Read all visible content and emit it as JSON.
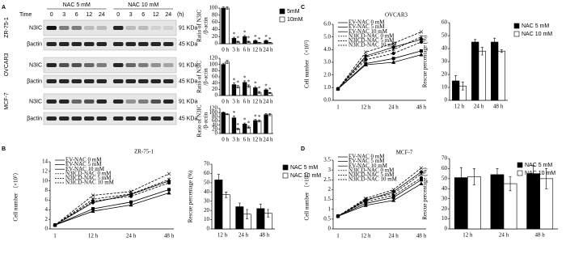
{
  "panel_labels": [
    "A",
    "B",
    "C",
    "D"
  ],
  "blot": {
    "time_label": "Time",
    "unit": "(h)",
    "conditions": [
      "NAC 5 mM",
      "NAC 10 mM"
    ],
    "times": [
      "0",
      "3",
      "6",
      "12",
      "24"
    ],
    "rows": [
      {
        "cell_line": "ZR-75-1",
        "bands": [
          {
            "name": "N3IC",
            "size": "91 KDa"
          },
          {
            "name": "βactin",
            "size": "45 KDa"
          }
        ]
      },
      {
        "cell_line": "OVCAR3",
        "bands": [
          {
            "name": "N3IC",
            "size": "91 KDa"
          },
          {
            "name": "βactin",
            "size": "45 KDa"
          }
        ]
      },
      {
        "cell_line": "MCF-7",
        "bands": [
          {
            "name": "N3IC",
            "size": "91 KDa"
          },
          {
            "name": "βactin",
            "size": "45 KDa"
          }
        ]
      }
    ]
  },
  "chart_data": [
    {
      "type": "bar",
      "y_label": [
        "Ratio of N3IC",
        "/β-actin"
      ],
      "categories": [
        "0 h",
        "3 h",
        "6 h",
        "12 h",
        "24 h"
      ],
      "ylim": [
        0,
        100
      ],
      "yticks": [
        0,
        20,
        40,
        60,
        80,
        100
      ],
      "legend": "right",
      "series": [
        {
          "name": "5mM",
          "color": "#000000",
          "values": [
            100,
            15,
            20,
            8,
            8
          ],
          "errors": [
            3,
            3,
            3,
            2,
            2
          ],
          "significance": [
            null,
            "*",
            "*",
            "*",
            "*"
          ]
        },
        {
          "name": "10mM",
          "color": "#ffffff",
          "values": [
            100,
            5,
            5,
            3,
            3
          ],
          "errors": [
            3,
            2,
            2,
            1,
            1
          ],
          "significance": [
            null,
            "*",
            "*",
            "*",
            "*"
          ]
        }
      ]
    },
    {
      "type": "bar",
      "y_label": [
        "Ratio of N3IC",
        "/β-actin"
      ],
      "categories": [
        "0 h",
        "3 h",
        "6 h",
        "12 h",
        "24 h"
      ],
      "ylim": [
        0,
        120
      ],
      "yticks": [
        0,
        20,
        40,
        60,
        80,
        100,
        120
      ],
      "series": [
        {
          "color": "#000000",
          "values": [
            100,
            35,
            42,
            25,
            18
          ],
          "errors": [
            4,
            5,
            5,
            4,
            3
          ],
          "significance": [
            null,
            "*",
            "*",
            "*",
            "*"
          ]
        },
        {
          "color": "#ffffff",
          "values": [
            108,
            28,
            30,
            10,
            8
          ],
          "errors": [
            5,
            4,
            4,
            3,
            2
          ],
          "significance": [
            null,
            "*",
            "*",
            "*",
            "*"
          ]
        }
      ]
    },
    {
      "type": "bar",
      "y_label": [
        "Ratio of N3IC",
        "/β-actin"
      ],
      "categories": [
        "0 h",
        "3 h",
        "6 h",
        "12 h",
        "24 h"
      ],
      "ylim": [
        0,
        120
      ],
      "yticks": [
        0,
        20,
        40,
        60,
        80,
        100,
        120
      ],
      "series": [
        {
          "color": "#000000",
          "values": [
            100,
            75,
            45,
            62,
            90
          ],
          "errors": [
            3,
            8,
            5,
            5,
            5
          ],
          "significance": [
            null,
            "*",
            "*",
            "*",
            null
          ]
        },
        {
          "color": "#ffffff",
          "values": [
            92,
            22,
            30,
            60,
            90
          ],
          "errors": [
            3,
            4,
            5,
            5,
            5
          ],
          "significance": [
            null,
            "*",
            "*",
            "*",
            null
          ]
        }
      ]
    },
    {
      "type": "line",
      "title": "ZR-75-1",
      "y_label": "Cell number （×10⁵）",
      "categories": [
        "1",
        "12 h",
        "24 h",
        "48 h"
      ],
      "ylim": [
        0,
        14
      ],
      "yticks": [
        0,
        2,
        4,
        6,
        8,
        10,
        12,
        14
      ],
      "legend": "upper left",
      "series": [
        {
          "name": "EV-NAC 0 mM",
          "color": "#000000",
          "dashed": false,
          "marker": "diamond",
          "values": [
            0.8,
            5.5,
            7.2,
            10.0
          ]
        },
        {
          "name": "EV-NAC 5 mM",
          "color": "#000000",
          "dashed": false,
          "marker": "square",
          "values": [
            0.8,
            4.2,
            5.6,
            8.2
          ]
        },
        {
          "name": "EV-NAC 10 mM",
          "color": "#000000",
          "dashed": false,
          "marker": "triangle",
          "values": [
            0.8,
            3.7,
            5.0,
            7.5
          ]
        },
        {
          "name": "N3ICD-NAC 0 mM",
          "color": "#000000",
          "dashed": true,
          "marker": "x",
          "values": [
            0.8,
            7.0,
            7.8,
            11.5
          ]
        },
        {
          "name": "N3ICD-NAC 5 mM",
          "color": "#000000",
          "dashed": true,
          "marker": "star",
          "values": [
            0.8,
            6.2,
            7.3,
            10.3
          ]
        },
        {
          "name": "N3ICD-NAC 10 mM",
          "color": "#000000",
          "dashed": true,
          "marker": "circle",
          "values": [
            0.8,
            5.8,
            6.8,
            9.6
          ]
        }
      ]
    },
    {
      "type": "bar",
      "y_label": "Rescue  percentage (%)",
      "categories": [
        "12 h",
        "24 h",
        "48 h"
      ],
      "ylim": [
        0,
        70
      ],
      "yticks": [
        0,
        10,
        20,
        30,
        40,
        50,
        60,
        70
      ],
      "legend": "right",
      "series": [
        {
          "name": "NAC 5 mM",
          "color": "#000000",
          "values": [
            53,
            24,
            22
          ],
          "errors": [
            6,
            4,
            5
          ]
        },
        {
          "name": "NAC 10 mM",
          "color": "#ffffff",
          "values": [
            37,
            16,
            17
          ],
          "errors": [
            3,
            5,
            4
          ]
        }
      ]
    },
    {
      "type": "line",
      "title": "OVCAR3",
      "y_label": "Cell number （×10⁵）",
      "categories": [
        "1",
        "12 h",
        "24 h",
        "48 h"
      ],
      "ylim": [
        0,
        6
      ],
      "yticks": [
        {
          "value": 0,
          "label": "0.0"
        },
        {
          "value": 1,
          "label": "1.0"
        },
        {
          "value": 2,
          "label": "2.0"
        },
        {
          "value": 3,
          "label": "3.0"
        },
        {
          "value": 4,
          "label": "4.0"
        },
        {
          "value": 5,
          "label": "5.0"
        },
        {
          "value": 6,
          "label": "6.0"
        }
      ],
      "legend": "upper left",
      "series": [
        {
          "name": "EV-NAC 0 mM",
          "color": "#000000",
          "dashed": false,
          "marker": "diamond",
          "values": [
            0.9,
            3.5,
            4.2,
            4.8
          ]
        },
        {
          "name": "EV-NAC 5 mM",
          "color": "#000000",
          "dashed": false,
          "marker": "square",
          "values": [
            0.9,
            2.9,
            3.3,
            3.9
          ]
        },
        {
          "name": "EV-NAC 10 mM",
          "color": "#000000",
          "dashed": false,
          "marker": "triangle",
          "values": [
            0.9,
            2.8,
            3.0,
            3.6
          ]
        },
        {
          "name": "N3ICD-NAC 0 mM",
          "color": "#000000",
          "dashed": true,
          "marker": "x",
          "values": [
            0.9,
            3.8,
            4.5,
            5.4
          ]
        },
        {
          "name": "N3ICD-NAC 5 mM",
          "color": "#000000",
          "dashed": true,
          "marker": "star",
          "values": [
            0.9,
            3.4,
            4.0,
            5.0
          ]
        },
        {
          "name": "N3ICD-NAC 10 mM",
          "color": "#000000",
          "dashed": true,
          "marker": "circle",
          "values": [
            0.9,
            3.2,
            3.7,
            4.6
          ]
        }
      ]
    },
    {
      "type": "bar",
      "y_label": "Rescue  percentage (%)",
      "categories": [
        "12 h",
        "24 h",
        "48 h"
      ],
      "ylim": [
        0,
        60
      ],
      "yticks": [
        0,
        10,
        20,
        30,
        40,
        50,
        60
      ],
      "legend": "right",
      "series": [
        {
          "name": "NAC 5 mM",
          "color": "#000000",
          "values": [
            15,
            45,
            45
          ],
          "errors": [
            4,
            2,
            3
          ]
        },
        {
          "name": "NAC 10 mM",
          "color": "#ffffff",
          "values": [
            11,
            38,
            38
          ],
          "errors": [
            3,
            3,
            1
          ]
        }
      ]
    },
    {
      "type": "line",
      "title": "MCF-7",
      "y_label": "Cell number （×10⁵）",
      "categories": [
        "1",
        "12 h",
        "24 h",
        "48 h"
      ],
      "ylim": [
        0,
        3.5
      ],
      "yticks": [
        0,
        0.5,
        1,
        1.5,
        2,
        2.5,
        3,
        3.5
      ],
      "legend": "upper left",
      "series": [
        {
          "name": "EV-NAC 0 mM",
          "color": "#000000",
          "dashed": false,
          "marker": "diamond",
          "values": [
            0.65,
            1.45,
            1.9,
            2.9
          ]
        },
        {
          "name": "EV-NAC 5 mM",
          "color": "#000000",
          "dashed": false,
          "marker": "square",
          "values": [
            0.65,
            1.3,
            1.6,
            2.5
          ]
        },
        {
          "name": "EV-NAC 10 mM",
          "color": "#000000",
          "dashed": false,
          "marker": "triangle",
          "values": [
            0.65,
            1.2,
            1.45,
            2.3
          ]
        },
        {
          "name": "N3ICD-NAC 0 mM",
          "color": "#000000",
          "dashed": true,
          "marker": "x",
          "values": [
            0.65,
            1.55,
            2.0,
            3.1
          ]
        },
        {
          "name": "N3ICD-NAC 5 mM",
          "color": "#000000",
          "dashed": true,
          "marker": "star",
          "values": [
            0.65,
            1.5,
            1.8,
            2.8
          ]
        },
        {
          "name": "N3ICD-NAC 10 mM",
          "color": "#000000",
          "dashed": true,
          "marker": "circle",
          "values": [
            0.65,
            1.4,
            1.7,
            2.6
          ]
        }
      ]
    },
    {
      "type": "bar",
      "y_label": "Rescue  percentage (%)",
      "categories": [
        "12 h",
        "24 h",
        "48 h"
      ],
      "ylim": [
        0,
        70
      ],
      "yticks": [
        0,
        10,
        20,
        30,
        40,
        50,
        60,
        70
      ],
      "legend": "upper right",
      "series": [
        {
          "name": "NAC 5 mM",
          "color": "#000000",
          "values": [
            51,
            54,
            55
          ],
          "errors": [
            10,
            6,
            8
          ]
        },
        {
          "name": "NAC 10 mM",
          "color": "#ffffff",
          "values": [
            52,
            45,
            50
          ],
          "errors": [
            8,
            7,
            10
          ]
        }
      ]
    }
  ]
}
